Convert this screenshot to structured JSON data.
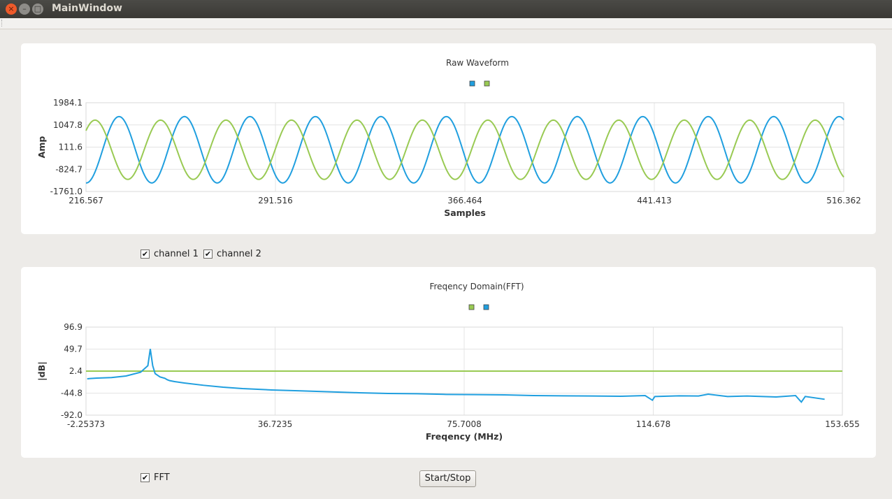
{
  "window": {
    "title": "MainWindow"
  },
  "charts": [
    {
      "title": "Raw Waveform",
      "xlabel": "Samples",
      "ylabel": "Amp",
      "x_ticks": [
        "216.567",
        "291.516",
        "366.464",
        "441.413",
        "516.362"
      ],
      "y_ticks": [
        "1984.1",
        "1047.8",
        "111.6",
        "-824.7",
        "-1761.0"
      ],
      "legend_colors": [
        "#209fdf",
        "#99ca53"
      ]
    },
    {
      "title": "Freqency Domain(FFT)",
      "xlabel": "Freqency (MHz)",
      "ylabel": "|dB|",
      "x_ticks": [
        "-2.25373",
        "36.7235",
        "75.7008",
        "114.678",
        "153.655"
      ],
      "y_ticks": [
        "96.9",
        "49.7",
        "2.4",
        "-44.8",
        "-92.0"
      ],
      "legend_colors": [
        "#99ca53",
        "#209fdf"
      ]
    }
  ],
  "chart_data": [
    {
      "type": "line",
      "title": "Raw Waveform",
      "xlabel": "Samples",
      "ylabel": "Amp",
      "xlim": [
        216.567,
        516.362
      ],
      "ylim": [
        -1761.0,
        1984.1
      ],
      "grid": true,
      "legend": "top-center",
      "series": [
        {
          "color": "#209fdf",
          "kind": "sine",
          "amplitude": 1400,
          "offset": 0,
          "period": 25.9,
          "phase": -1.6
        },
        {
          "color": "#99ca53",
          "kind": "sine",
          "amplitude": 1250,
          "offset": 0,
          "period": 25.9,
          "phase": 0.7
        }
      ]
    },
    {
      "type": "line",
      "title": "Freqency Domain(FFT)",
      "xlabel": "Freqency (MHz)",
      "ylabel": "|dB|",
      "xlim": [
        -2.25373,
        153.655
      ],
      "ylim": [
        -92.0,
        96.9
      ],
      "grid": true,
      "legend": "top-center",
      "series": [
        {
          "color": "#99ca53",
          "x": [
            -2.25373,
            153.655
          ],
          "y": [
            2.4,
            2.4
          ]
        },
        {
          "color": "#209fdf",
          "x": [
            -2.0,
            0.0,
            3.0,
            6.0,
            9.0,
            10.5,
            11.0,
            11.5,
            12.0,
            13.0,
            14.0,
            14.5,
            15.0,
            16.0,
            18.0,
            22.0,
            26.0,
            30.0,
            36.0,
            42.0,
            48.0,
            54.0,
            60.0,
            66.0,
            72.0,
            78.0,
            84.0,
            90.0,
            96.0,
            102.0,
            108.0,
            113.0,
            114.5,
            115.0,
            120.0,
            124.0,
            126.0,
            130.0,
            134.0,
            140.0,
            144.0,
            145.2,
            146.0,
            150.0
          ],
          "y": [
            -14.0,
            -12.5,
            -11.5,
            -8.0,
            0.0,
            14.0,
            50.0,
            14.0,
            -3.0,
            -10.0,
            -13.0,
            -16.0,
            -18.0,
            -20.0,
            -23.0,
            -28.0,
            -32.0,
            -35.0,
            -38.0,
            -40.0,
            -42.0,
            -44.0,
            -45.5,
            -46.0,
            -47.5,
            -48.0,
            -48.5,
            -50.0,
            -50.5,
            -51.0,
            -51.5,
            -50.0,
            -60.0,
            -52.0,
            -50.5,
            -51.0,
            -47.0,
            -52.0,
            -51.0,
            -53.0,
            -50.0,
            -64.0,
            -52.0,
            -58.0
          ]
        }
      ]
    }
  ],
  "controls": {
    "channel1_label": "channel 1",
    "channel1_checked": true,
    "channel2_label": "channel 2",
    "channel2_checked": true,
    "fft_label": "FFT",
    "fft_checked": true,
    "startstop_label": "Start/Stop",
    "check_glyph": "✔"
  }
}
